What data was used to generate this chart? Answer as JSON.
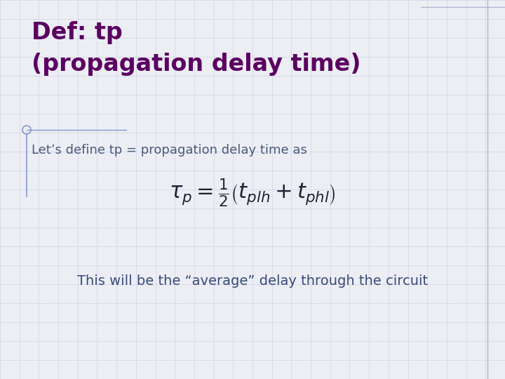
{
  "title_line1": "Def: tp",
  "title_line2": "(propagation delay time)",
  "title_color": "#5B0060",
  "subtitle": "Let’s define tp = propagation delay time as",
  "subtitle_color": "#4a5a7a",
  "formula": "\\tau_p = \\frac{1}{2}\\left(t_{plh} + t_{phl}\\right)",
  "formula_color": "#222233",
  "footnote": "This will be the “average” delay through the circuit",
  "footnote_color": "#3a4a7a",
  "bg_color": "#eceef4",
  "grid_color": "#d0d4e8",
  "border_color": "#b0b8d0",
  "title_fontsize": 24,
  "subtitle_fontsize": 13,
  "formula_fontsize": 22,
  "footnote_fontsize": 14,
  "left_line_color": "#8899cc",
  "circle_color": "#8899cc"
}
